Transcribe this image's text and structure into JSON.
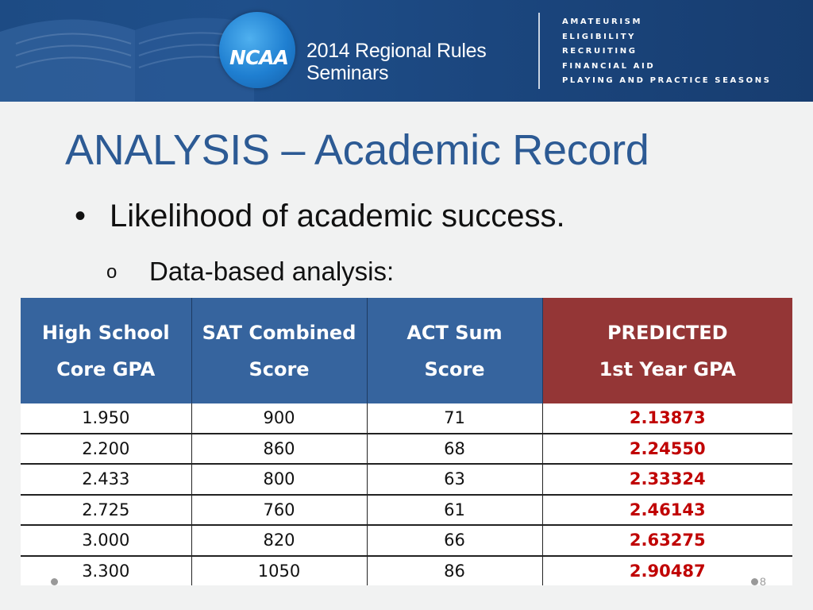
{
  "banner": {
    "logo_text": "NCAA",
    "seminar_title_line1": "2014 Regional Rules",
    "seminar_title_line2": "Seminars",
    "topics": [
      "AMATEURISM",
      "ELIGIBILITY",
      "RECRUITING",
      "FINANCIAL AID",
      "PLAYING AND PRACTICE SEASONS"
    ]
  },
  "slide": {
    "title": "ANALYSIS – Academic Record",
    "bullet": "Likelihood of academic success.",
    "bullet_marker": "•",
    "sub_bullet": "Data-based analysis:",
    "sub_bullet_marker": "o",
    "slide_number": "8"
  },
  "table": {
    "headers": [
      [
        "High School",
        "Core GPA"
      ],
      [
        "SAT Combined",
        "Score"
      ],
      [
        "ACT Sum",
        "Score"
      ],
      [
        "PREDICTED",
        "1st Year GPA"
      ]
    ],
    "rows": [
      [
        "1.950",
        "900",
        "71",
        "2.13873"
      ],
      [
        "2.200",
        "860",
        "68",
        "2.24550"
      ],
      [
        "2.433",
        "800",
        "63",
        "2.33324"
      ],
      [
        "2.725",
        "760",
        "61",
        "2.46143"
      ],
      [
        "3.000",
        "820",
        "66",
        "2.63275"
      ],
      [
        "3.300",
        "1050",
        "86",
        "2.90487"
      ]
    ]
  },
  "colors": {
    "banner": "#1f4f8a",
    "title": "#2c5a94",
    "header_blue": "#36649e",
    "header_red": "#943636",
    "predicted_text": "#c00000"
  }
}
